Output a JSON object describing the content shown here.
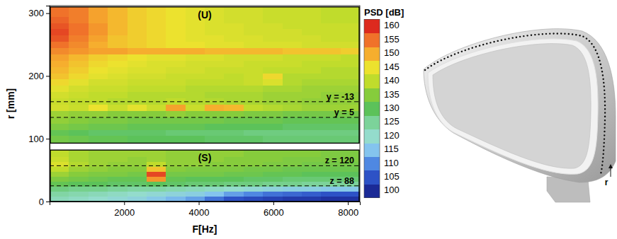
{
  "chart_data": {
    "type": "heatmap",
    "x_label": "F[Hz]",
    "y_label": "r [mm]",
    "xlim": [
      0,
      8320
    ],
    "xticks": [
      2000,
      4000,
      6000,
      8000
    ],
    "ylim": [
      0,
      312
    ],
    "yticks": [
      0,
      100,
      200,
      300
    ],
    "colorbar": {
      "label": "PSD [dB]",
      "range": [
        100,
        160
      ],
      "ticks": [
        100,
        105,
        110,
        115,
        120,
        125,
        130,
        135,
        140,
        145,
        150,
        155,
        160
      ]
    },
    "x_edges": [
      0,
      520,
      1040,
      1560,
      2080,
      2600,
      3120,
      3640,
      4160,
      4680,
      5200,
      5720,
      6240,
      6760,
      7280,
      7800,
      8320
    ],
    "regions": [
      {
        "label": "(U)",
        "r_range": [
          93,
          310
        ],
        "r_edges": [
          93,
          105,
          115,
          125,
          135,
          145,
          155,
          165,
          175,
          185,
          195,
          205,
          215,
          225,
          235,
          245,
          255,
          265,
          275,
          285,
          295,
          310
        ],
        "values": [
          [
            133,
            132,
            131,
            131,
            130,
            130,
            130,
            130,
            129,
            129,
            129,
            128,
            128,
            128,
            128,
            128
          ],
          [
            131,
            130,
            129,
            129,
            129,
            129,
            128,
            128,
            128,
            128,
            127,
            127,
            127,
            127,
            127,
            127
          ],
          [
            134,
            133,
            132,
            132,
            131,
            131,
            131,
            131,
            130,
            130,
            130,
            130,
            129,
            129,
            129,
            129
          ],
          [
            136,
            135,
            134,
            134,
            133,
            133,
            133,
            133,
            133,
            132,
            132,
            132,
            131,
            131,
            131,
            131
          ],
          [
            137,
            136,
            136,
            135,
            135,
            135,
            136,
            135,
            135,
            135,
            134,
            134,
            133,
            133,
            133,
            133
          ],
          [
            142,
            141,
            145,
            141,
            144,
            141,
            151,
            141,
            150,
            149,
            140,
            139,
            138,
            137,
            137,
            137
          ],
          [
            141,
            140,
            140,
            139,
            139,
            139,
            140,
            139,
            139,
            138,
            138,
            137,
            137,
            136,
            136,
            136
          ],
          [
            142,
            141,
            140,
            140,
            139,
            139,
            139,
            139,
            138,
            138,
            138,
            137,
            137,
            137,
            136,
            136
          ],
          [
            144,
            142,
            141,
            141,
            140,
            140,
            140,
            139,
            139,
            139,
            139,
            138,
            138,
            137,
            137,
            137
          ],
          [
            146,
            144,
            142,
            142,
            141,
            141,
            141,
            140,
            140,
            140,
            141,
            143,
            139,
            138,
            138,
            138
          ],
          [
            148,
            146,
            144,
            143,
            142,
            142,
            141,
            141,
            141,
            140,
            141,
            146,
            139,
            139,
            139,
            139
          ],
          [
            149,
            147,
            145,
            144,
            143,
            143,
            142,
            142,
            141,
            141,
            141,
            140,
            140,
            140,
            139,
            139
          ],
          [
            150,
            148,
            146,
            145,
            144,
            143,
            143,
            142,
            142,
            142,
            141,
            141,
            141,
            140,
            140,
            140
          ],
          [
            151,
            149,
            147,
            146,
            145,
            144,
            144,
            143,
            143,
            142,
            142,
            142,
            141,
            141,
            141,
            140
          ],
          [
            153,
            152,
            151,
            151,
            150,
            150,
            150,
            150,
            149,
            149,
            149,
            149,
            148,
            148,
            148,
            147
          ],
          [
            155,
            153,
            150,
            148,
            147,
            146,
            145,
            145,
            144,
            144,
            143,
            143,
            143,
            142,
            142,
            142
          ],
          [
            157,
            154,
            151,
            148,
            147,
            146,
            145,
            144,
            144,
            143,
            143,
            142,
            142,
            142,
            141,
            141
          ],
          [
            158,
            155,
            152,
            149,
            147,
            146,
            145,
            144,
            143,
            143,
            142,
            142,
            142,
            141,
            141,
            141
          ],
          [
            157,
            155,
            152,
            149,
            147,
            146,
            145,
            144,
            143,
            143,
            142,
            142,
            141,
            141,
            141,
            141
          ],
          [
            156,
            154,
            151,
            149,
            147,
            146,
            145,
            144,
            143,
            142,
            142,
            141,
            141,
            141,
            140,
            140
          ],
          [
            155,
            154,
            151,
            149,
            147,
            146,
            145,
            144,
            143,
            142,
            142,
            141,
            141,
            141,
            140,
            140
          ]
        ]
      },
      {
        "label": "(S)",
        "r_range": [
          0,
          82
        ],
        "r_edges": [
          0,
          8,
          16,
          24,
          32,
          40,
          48,
          56,
          64,
          72,
          82
        ],
        "values": [
          [
            122,
            121,
            120,
            119,
            118,
            116,
            114,
            112,
            108,
            105,
            104,
            103,
            102,
            102,
            101,
            101
          ],
          [
            124,
            123,
            122,
            121,
            120,
            119,
            118,
            117,
            115,
            112,
            110,
            108,
            107,
            106,
            105,
            105
          ],
          [
            127,
            126,
            126,
            125,
            124,
            124,
            123,
            122,
            121,
            120,
            119,
            118,
            117,
            117,
            116,
            116
          ],
          [
            131,
            130,
            130,
            129,
            129,
            130,
            129,
            128,
            128,
            127,
            127,
            126,
            126,
            125,
            125,
            125
          ],
          [
            134,
            133,
            132,
            131,
            131,
            152,
            131,
            130,
            130,
            130,
            129,
            129,
            128,
            128,
            128,
            128
          ],
          [
            137,
            135,
            134,
            134,
            133,
            158,
            133,
            133,
            133,
            132,
            132,
            131,
            131,
            130,
            130,
            130
          ],
          [
            140,
            137,
            136,
            135,
            135,
            148,
            135,
            134,
            134,
            134,
            133,
            133,
            132,
            132,
            132,
            132
          ],
          [
            143,
            139,
            137,
            136,
            136,
            140,
            136,
            136,
            135,
            135,
            135,
            134,
            134,
            133,
            133,
            133
          ],
          [
            141,
            138,
            137,
            137,
            136,
            137,
            136,
            136,
            136,
            135,
            135,
            135,
            134,
            134,
            134,
            134
          ],
          [
            140,
            138,
            137,
            137,
            137,
            137,
            136,
            136,
            136,
            136,
            135,
            135,
            135,
            135,
            134,
            134
          ]
        ]
      }
    ],
    "lines": [
      {
        "label": "y = -13",
        "r": 159
      },
      {
        "label": "y = 5",
        "r": 134
      },
      {
        "label": "z = 120",
        "r": 57
      },
      {
        "label": "z = 88",
        "r": 25
      }
    ]
  },
  "sketch": {
    "label": "r"
  }
}
